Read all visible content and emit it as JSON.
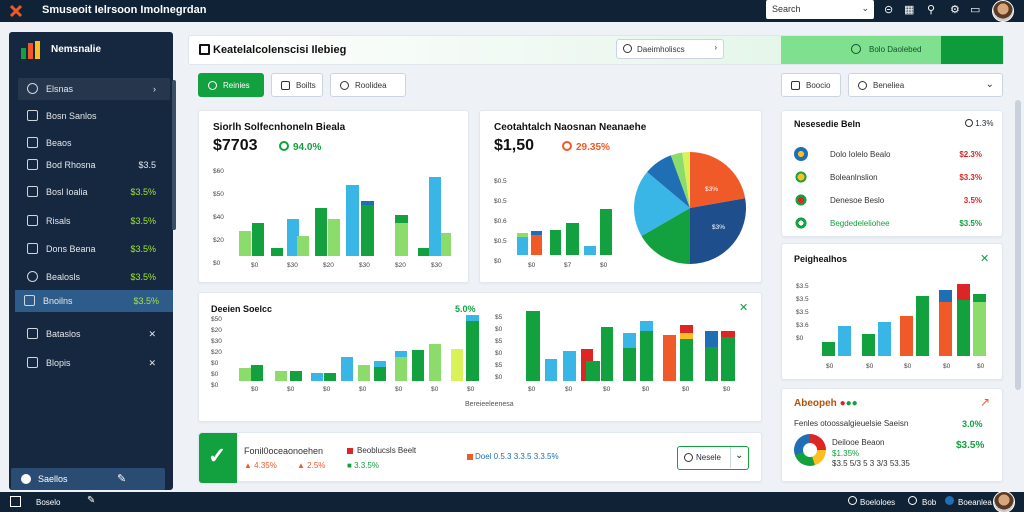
{
  "topbar": {
    "app_title": "Smuseoit Ielrsoon Imolnegrdan",
    "search_value": "Search",
    "icons": [
      "chat-icon",
      "grid-icon",
      "search-icon",
      "settings-icon",
      "mail-icon"
    ]
  },
  "sidebar": {
    "title": "Nemsnalie",
    "items": [
      {
        "label": "Elsnas",
        "value": ""
      },
      {
        "label": "Bosn Sanlos",
        "value": ""
      },
      {
        "label": "Beaos",
        "value": ""
      },
      {
        "label": "Bod Rhosna",
        "value": "$3.5"
      },
      {
        "label": "Bosl Ioalia",
        "value": "$3.5%"
      },
      {
        "label": "Risals",
        "value": "$3.5%"
      },
      {
        "label": "Dons Beana",
        "value": "$3.5%"
      },
      {
        "label": "Bealosls",
        "value": "$3.5%"
      },
      {
        "label": "Bnoilns",
        "value": "$3.5%"
      },
      {
        "label": "Bataslos",
        "value": ""
      },
      {
        "label": "Blopis",
        "value": ""
      }
    ],
    "footer_label": "Saellos"
  },
  "header": {
    "title": "Keatelalcolenscisi  Ilebieg",
    "pill_label": "Daeimholiscs",
    "green_label": "Bolo Daolebed"
  },
  "toolbar": {
    "primary": "Reinies",
    "second": "Boilts",
    "third": "Roolidea",
    "right1": "Boocio",
    "right2": "Beneliea"
  },
  "card1": {
    "title": "Siorlh Solfecnhoneln Bieala",
    "value": "$7703",
    "pct": "94.0%",
    "ylabels": [
      "$60",
      "$50",
      "$40",
      "$20",
      "$0"
    ],
    "xlabels": [
      "$0",
      "$30",
      "$20",
      "$30",
      "$20",
      "$30"
    ]
  },
  "card2": {
    "title": "Ceotahtalch Naosnan Neanaehe",
    "value": "$1,50",
    "pct": "29.35%",
    "ylabels": [
      "$0.5",
      "$0.5",
      "$0.6",
      "$0.5",
      "$0"
    ],
    "xlabels": [
      "$0",
      "$7",
      "$0"
    ],
    "slices": [
      "$3%",
      "$3%"
    ]
  },
  "card3": {
    "title": "Deeien Soelcc",
    "pct": "5.0%",
    "xlabels": [
      "$0",
      "$0",
      "$0",
      "$0",
      "$0",
      "$0",
      "$0"
    ],
    "caption": "Bereieeleenesa"
  },
  "card4": {
    "xlabels": [
      "$0",
      "$0",
      "$0",
      "$0",
      "$0"
    ]
  },
  "strip": {
    "title": "Fonil0oceaonoehen",
    "items": [
      "Beoblucsls Beelt",
      "4.35%",
      "2.5%",
      "3.3.5%",
      "Doel 0.5.3 3.3.5 3.3.5%"
    ],
    "btn": "Nesele"
  },
  "right1": {
    "title": "Nesesedie Beln",
    "pct": "1.3%",
    "rows": [
      {
        "label": "Dolo Iolelo Bealo",
        "value": "$2.3%",
        "color": "#dc2626"
      },
      {
        "label": "Boleanlnslion",
        "value": "$3.3%",
        "color": "#dc2626"
      },
      {
        "label": "Denesoe Beslo",
        "value": "3.5%",
        "color": "#dc2626"
      },
      {
        "label": "Begdedeleliohee",
        "value": "$3.5%",
        "color": "#13a03f"
      }
    ]
  },
  "right2": {
    "title": "Peighealhos",
    "ylabels": [
      "$3.5",
      "$3.5",
      "$3.5",
      "$3.6",
      "$0"
    ]
  },
  "right3": {
    "title": "Abeopeh",
    "line1": "Fenles otoossalgieuelsie  Saeisn",
    "line1_val": "3.0%",
    "line2": "Deilooe Beaon",
    "line2_val": "$3.5%",
    "line3": "$1.35%",
    "line4": "$3.5 5/3 5 3 3/3 53.35"
  },
  "bottombar": {
    "left": "Boselo",
    "right1": "Boeloloes",
    "right2": "Bob",
    "right3": "Boeanlea"
  }
}
